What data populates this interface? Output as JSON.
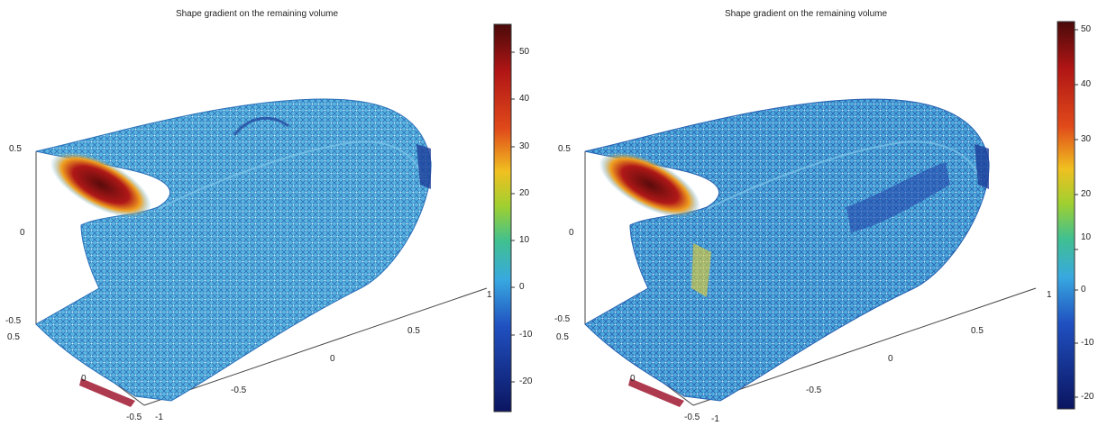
{
  "panels": [
    {
      "title": "Shape gradient on the remaining volume",
      "colorbar_ticks": [
        "50",
        "40",
        "30",
        "20",
        "10",
        "0",
        "-10",
        "-20"
      ],
      "z_ticks": [
        "0.5",
        "0",
        "-0.5"
      ],
      "y_ticks": [
        "0.5",
        "0",
        "-0.5"
      ],
      "x_ticks": [
        "-1",
        "-0.5",
        "0",
        "0.5",
        "1"
      ]
    },
    {
      "title": "Shape gradient on the remaining volume",
      "colorbar_ticks": [
        "50",
        "40",
        "30",
        "20",
        "10",
        "0",
        "-10",
        "-20"
      ],
      "z_ticks": [
        "0.5",
        "0",
        "-0.5"
      ],
      "y_ticks": [
        "0.5",
        "0",
        "-0.5"
      ],
      "x_ticks": [
        "-1",
        "-0.5",
        "0",
        "0.5",
        "1"
      ]
    }
  ],
  "colors": {
    "low": "#0a1a6e",
    "mid": "#3fa6d8",
    "high": "#5a0b0b"
  }
}
